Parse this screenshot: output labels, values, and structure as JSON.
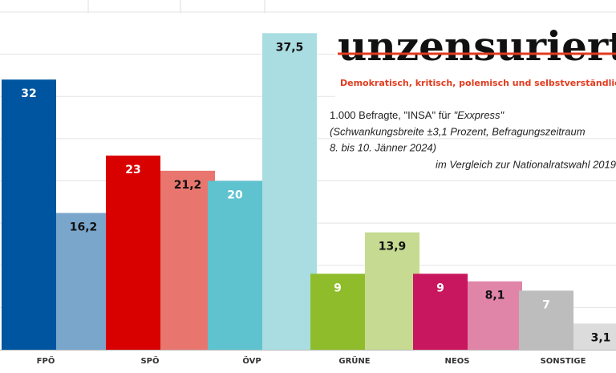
{
  "chart_data": {
    "type": "bar",
    "categories": [
      "FPÖ",
      "SPÖ",
      "ÖVP",
      "GRÜNE",
      "NEOS",
      "SONSTIGE"
    ],
    "series": [
      {
        "values": [
          32,
          23,
          20,
          9,
          9,
          7
        ],
        "colors": [
          "#0055a0",
          "#d90000",
          "#5ec3cf",
          "#8fbc2a",
          "#c8175e",
          "#bdbdbd"
        ]
      },
      {
        "values": [
          16.2,
          21.2,
          37.5,
          13.9,
          8.1,
          3.1
        ],
        "value_labels": [
          "16,2",
          "21,2",
          "37,5",
          "13,9",
          "8,1",
          "3,1"
        ],
        "colors": [
          "#7aa6cc",
          "#e8766f",
          "#a9dde1",
          "#c6da92",
          "#e085a8",
          "#dcdcdc"
        ]
      }
    ],
    "ylim": [
      0,
      40
    ],
    "yticks": [
      0,
      5,
      10,
      15,
      20,
      25,
      30,
      35,
      40
    ],
    "grid": true,
    "logo": {
      "name": "unzensuriert",
      "tagline": "Demokratisch, kritisch, polemisch und selbstverständlich parteilich"
    },
    "notes": {
      "line1": "1.000 Befragte, \"INSA\" für ",
      "line1_source": "\"Exxpress\"",
      "line2": "(Schwankungsbreite ±3,1 Prozent, Befragungszeitraum",
      "line3": "8. bis 10. Jänner 2024)",
      "line4": "im Vergleich zur Nationalratswahl 2019"
    }
  }
}
